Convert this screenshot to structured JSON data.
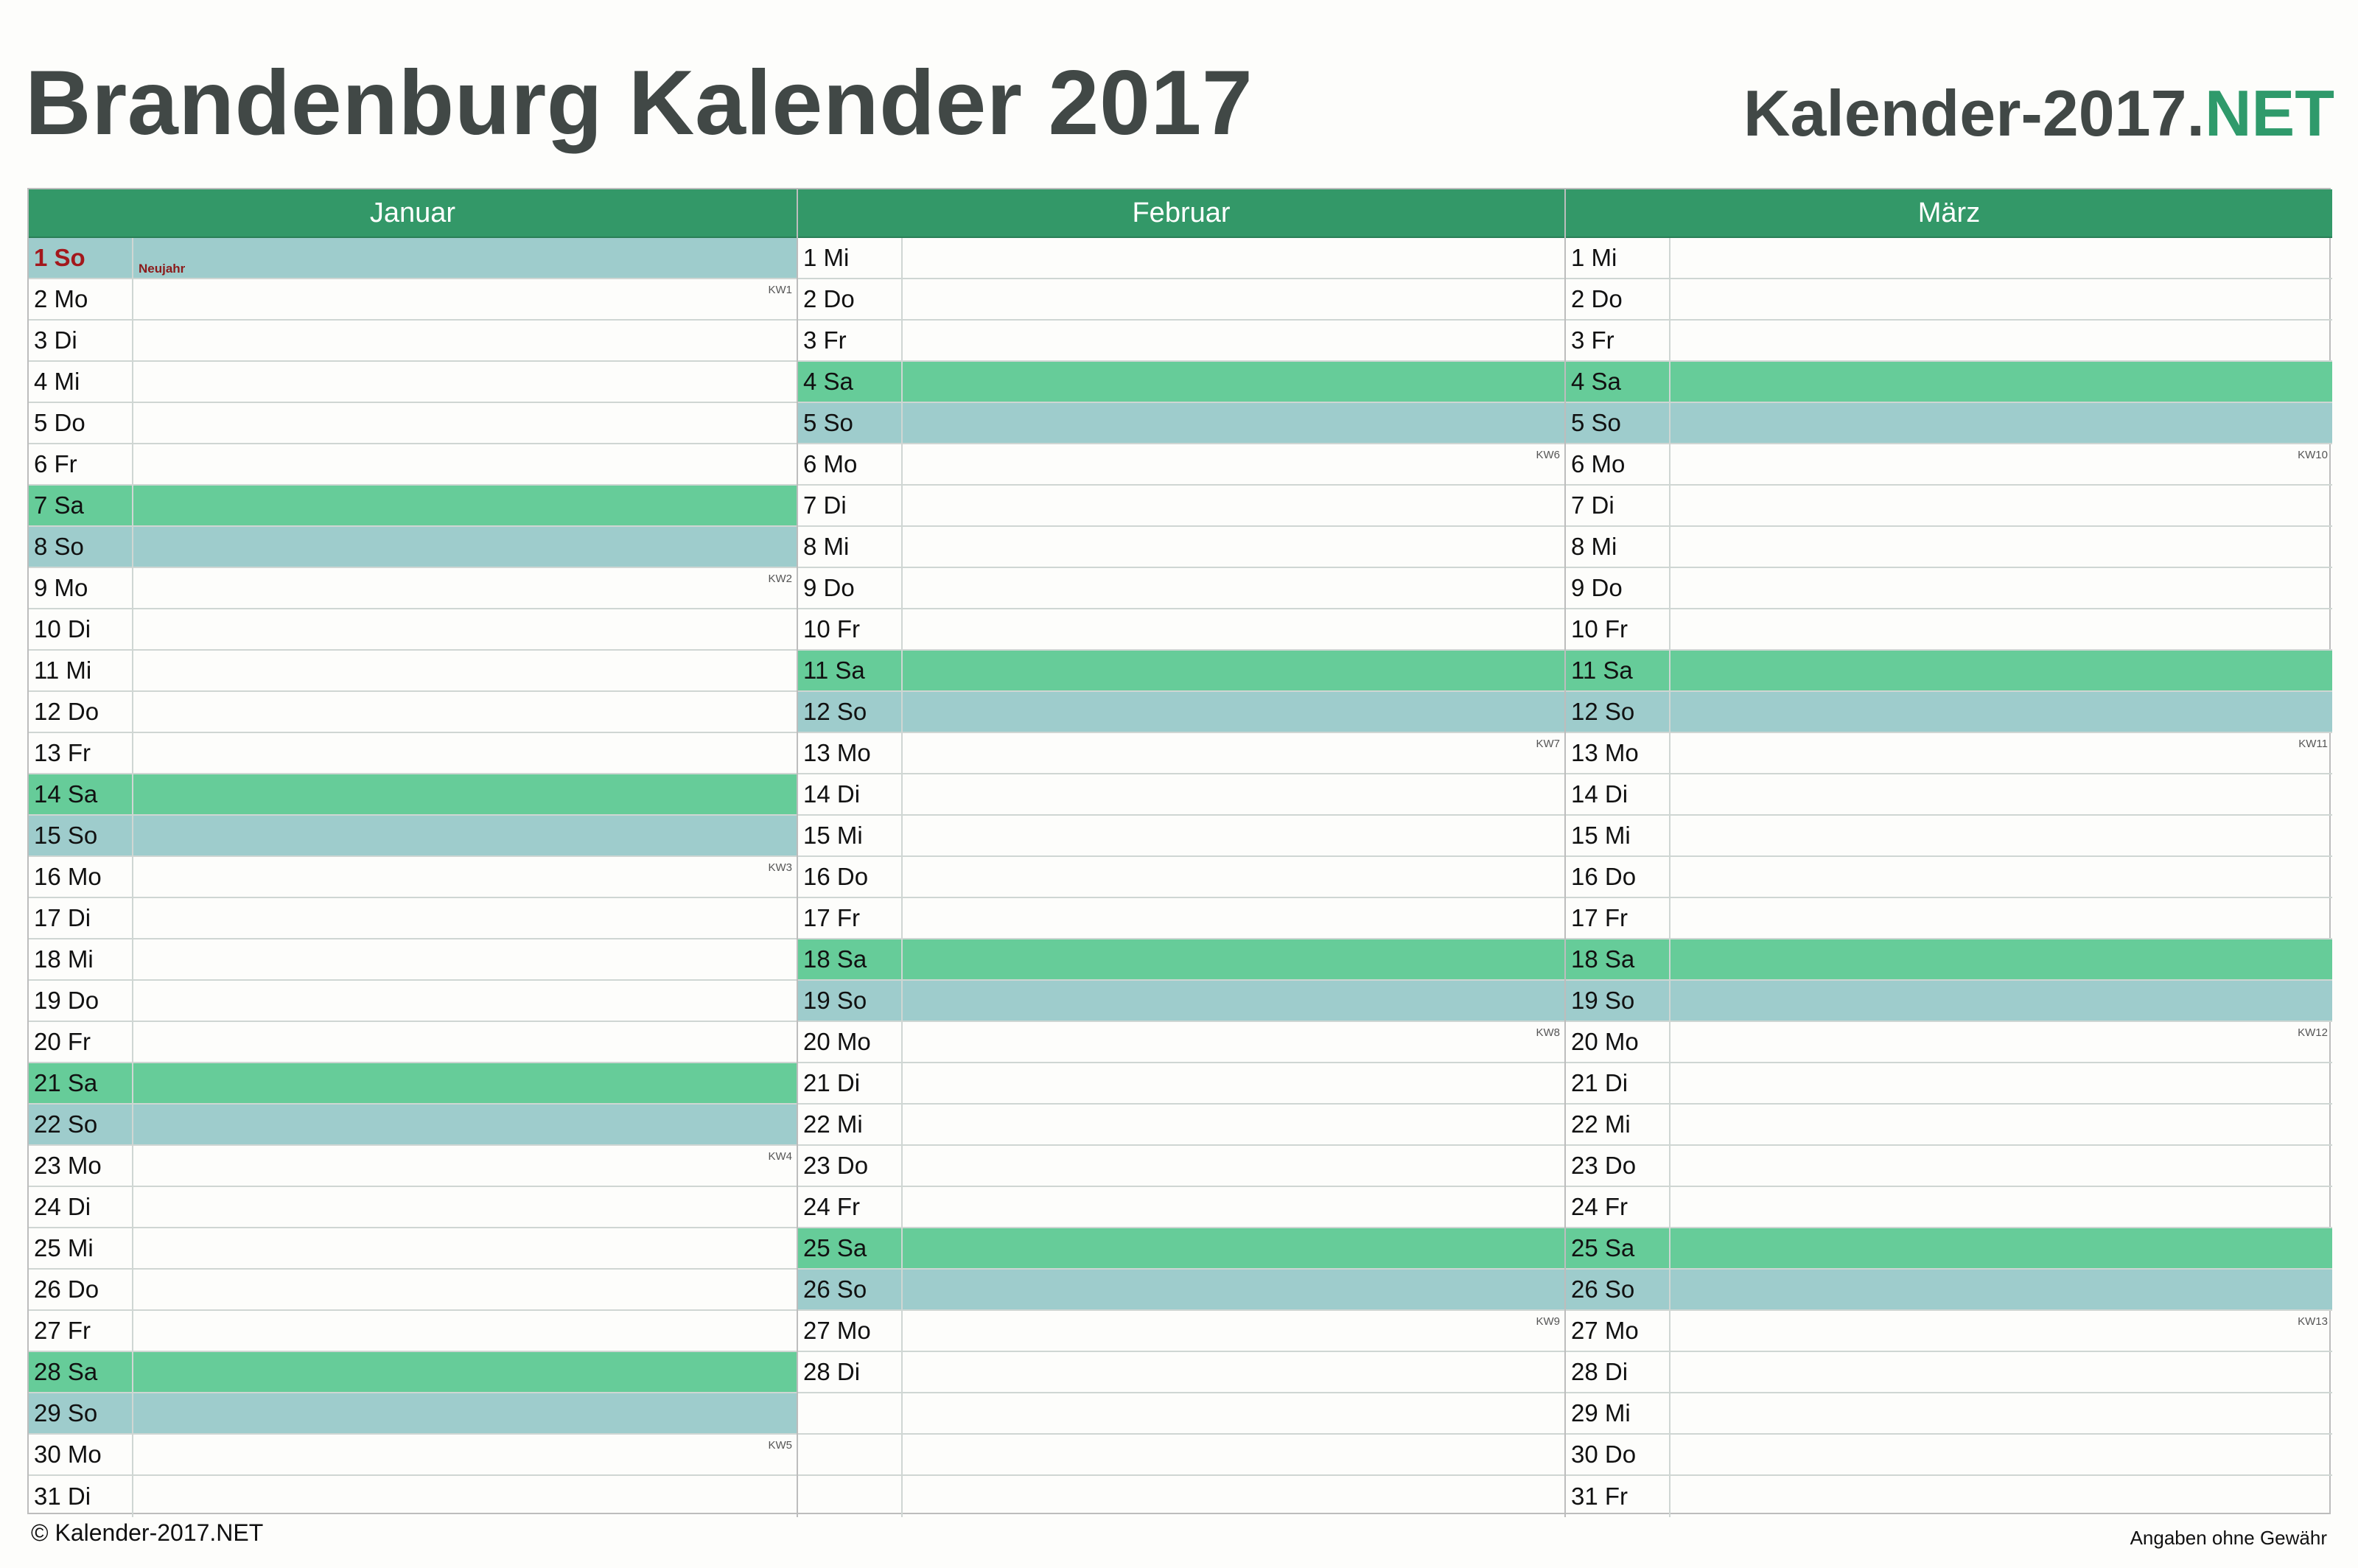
{
  "header": {
    "title": "Brandenburg Kalender 2017",
    "brand_main": "Kalender-2017.",
    "brand_suffix": "NET"
  },
  "colors": {
    "header_green": "#339868",
    "saturday": "#66cc99",
    "sunday": "#9ecccc",
    "holiday_text": "#a3181c",
    "title_gray": "#414846",
    "brand_accent": "#2f9a6b"
  },
  "months": [
    {
      "name": "Januar",
      "days": [
        {
          "label": "1 So",
          "type": "sun",
          "holiday": "Neujahr"
        },
        {
          "label": "2 Mo",
          "kw": "KW1"
        },
        {
          "label": "3 Di"
        },
        {
          "label": "4 Mi"
        },
        {
          "label": "5 Do"
        },
        {
          "label": "6 Fr"
        },
        {
          "label": "7 Sa",
          "type": "sat"
        },
        {
          "label": "8 So",
          "type": "sun"
        },
        {
          "label": "9 Mo",
          "kw": "KW2"
        },
        {
          "label": "10 Di"
        },
        {
          "label": "11 Mi"
        },
        {
          "label": "12 Do"
        },
        {
          "label": "13 Fr"
        },
        {
          "label": "14 Sa",
          "type": "sat"
        },
        {
          "label": "15 So",
          "type": "sun"
        },
        {
          "label": "16 Mo",
          "kw": "KW3"
        },
        {
          "label": "17 Di"
        },
        {
          "label": "18 Mi"
        },
        {
          "label": "19 Do"
        },
        {
          "label": "20 Fr"
        },
        {
          "label": "21 Sa",
          "type": "sat"
        },
        {
          "label": "22 So",
          "type": "sun"
        },
        {
          "label": "23 Mo",
          "kw": "KW4"
        },
        {
          "label": "24 Di"
        },
        {
          "label": "25 Mi"
        },
        {
          "label": "26 Do"
        },
        {
          "label": "27 Fr"
        },
        {
          "label": "28 Sa",
          "type": "sat"
        },
        {
          "label": "29 So",
          "type": "sun"
        },
        {
          "label": "30 Mo",
          "kw": "KW5"
        },
        {
          "label": "31 Di"
        }
      ]
    },
    {
      "name": "Februar",
      "days": [
        {
          "label": "1 Mi"
        },
        {
          "label": "2 Do"
        },
        {
          "label": "3 Fr"
        },
        {
          "label": "4 Sa",
          "type": "sat"
        },
        {
          "label": "5 So",
          "type": "sun"
        },
        {
          "label": "6 Mo",
          "kw": "KW6"
        },
        {
          "label": "7 Di"
        },
        {
          "label": "8 Mi"
        },
        {
          "label": "9 Do"
        },
        {
          "label": "10 Fr"
        },
        {
          "label": "11 Sa",
          "type": "sat"
        },
        {
          "label": "12 So",
          "type": "sun"
        },
        {
          "label": "13 Mo",
          "kw": "KW7"
        },
        {
          "label": "14 Di"
        },
        {
          "label": "15 Mi"
        },
        {
          "label": "16 Do"
        },
        {
          "label": "17 Fr"
        },
        {
          "label": "18 Sa",
          "type": "sat"
        },
        {
          "label": "19 So",
          "type": "sun"
        },
        {
          "label": "20 Mo",
          "kw": "KW8"
        },
        {
          "label": "21 Di"
        },
        {
          "label": "22 Mi"
        },
        {
          "label": "23 Do"
        },
        {
          "label": "24 Fr"
        },
        {
          "label": "25 Sa",
          "type": "sat"
        },
        {
          "label": "26 So",
          "type": "sun"
        },
        {
          "label": "27 Mo",
          "kw": "KW9"
        },
        {
          "label": "28 Di"
        },
        {
          "label": ""
        },
        {
          "label": ""
        },
        {
          "label": ""
        }
      ]
    },
    {
      "name": "März",
      "days": [
        {
          "label": "1 Mi"
        },
        {
          "label": "2 Do"
        },
        {
          "label": "3 Fr"
        },
        {
          "label": "4 Sa",
          "type": "sat"
        },
        {
          "label": "5 So",
          "type": "sun"
        },
        {
          "label": "6 Mo",
          "kw": "KW10"
        },
        {
          "label": "7 Di"
        },
        {
          "label": "8 Mi"
        },
        {
          "label": "9 Do"
        },
        {
          "label": "10 Fr"
        },
        {
          "label": "11 Sa",
          "type": "sat"
        },
        {
          "label": "12 So",
          "type": "sun"
        },
        {
          "label": "13 Mo",
          "kw": "KW11"
        },
        {
          "label": "14 Di"
        },
        {
          "label": "15 Mi"
        },
        {
          "label": "16 Do"
        },
        {
          "label": "17 Fr"
        },
        {
          "label": "18 Sa",
          "type": "sat"
        },
        {
          "label": "19 So",
          "type": "sun"
        },
        {
          "label": "20 Mo",
          "kw": "KW12"
        },
        {
          "label": "21 Di"
        },
        {
          "label": "22 Mi"
        },
        {
          "label": "23 Do"
        },
        {
          "label": "24 Fr"
        },
        {
          "label": "25 Sa",
          "type": "sat"
        },
        {
          "label": "26 So",
          "type": "sun"
        },
        {
          "label": "27 Mo",
          "kw": "KW13"
        },
        {
          "label": "28 Di"
        },
        {
          "label": "29 Mi"
        },
        {
          "label": "30 Do"
        },
        {
          "label": "31 Fr"
        }
      ]
    }
  ],
  "footer": {
    "copyright": "© Kalender-2017.NET",
    "disclaimer": "Angaben ohne Gewähr"
  }
}
